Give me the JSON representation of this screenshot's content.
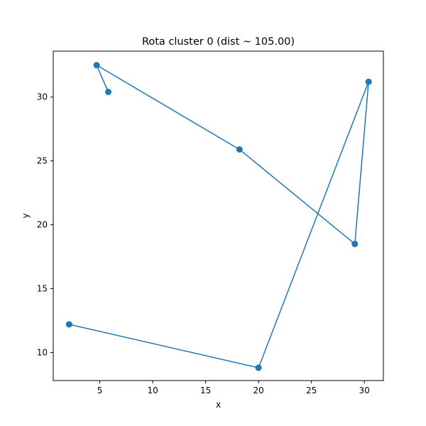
{
  "chart_data": {
    "type": "line",
    "title": "Rota cluster 0 (dist ~ 105.00)",
    "xlabel": "x",
    "ylabel": "y",
    "xlim": [
      0.6,
      31.8
    ],
    "ylim": [
      7.8,
      33.6
    ],
    "xticks": [
      5,
      10,
      15,
      20,
      25,
      30
    ],
    "yticks": [
      10,
      15,
      20,
      25,
      30
    ],
    "grid": false,
    "series": [
      {
        "color": "#1f77b4",
        "marker": "circle",
        "points": [
          {
            "x": 5.8,
            "y": 30.4
          },
          {
            "x": 4.7,
            "y": 32.5
          },
          {
            "x": 18.2,
            "y": 25.9
          },
          {
            "x": 29.1,
            "y": 18.5
          },
          {
            "x": 30.4,
            "y": 31.2
          },
          {
            "x": 20.0,
            "y": 8.8
          },
          {
            "x": 2.1,
            "y": 12.2
          }
        ]
      }
    ]
  }
}
